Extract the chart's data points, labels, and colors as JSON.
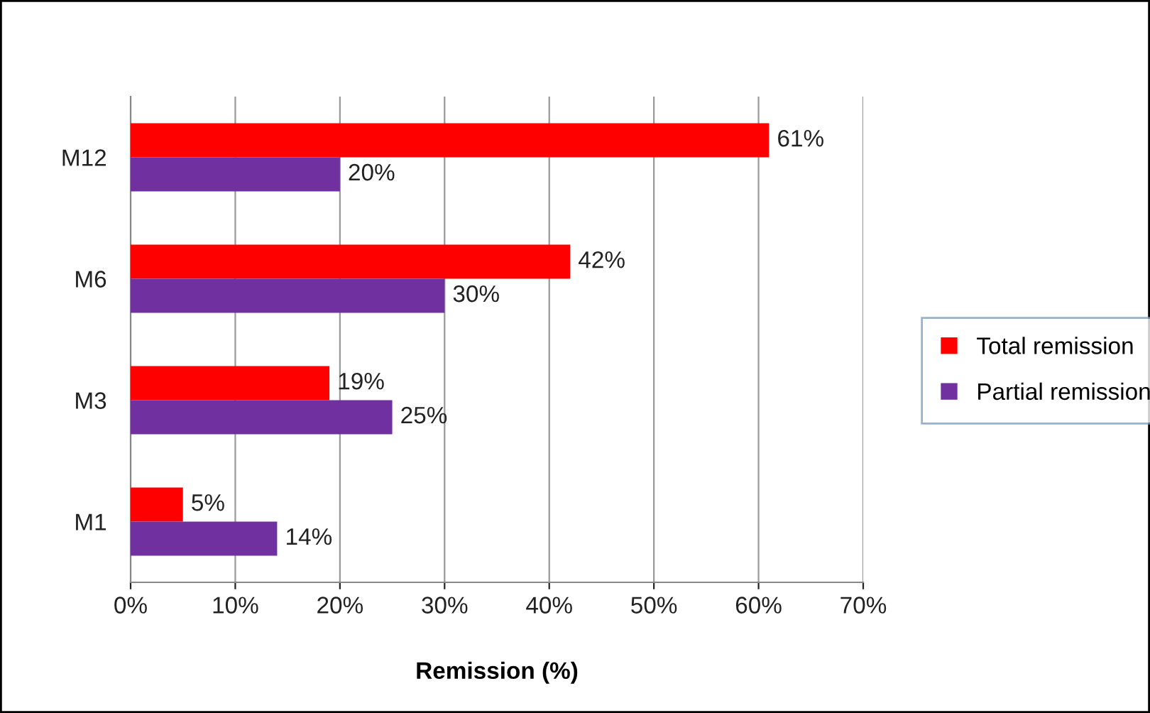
{
  "chart_data": {
    "type": "bar",
    "orientation": "horizontal",
    "xlabel": "Remission (%)",
    "categories": [
      "M12",
      "M6",
      "M3",
      "M1"
    ],
    "series": [
      {
        "name": "Total remission",
        "color": "#ff0000",
        "values": [
          61,
          42,
          19,
          5
        ],
        "value_labels": [
          "61%",
          "42%",
          "19%",
          "5%"
        ]
      },
      {
        "name": "Partial remission",
        "color": "#7030a0",
        "values": [
          20,
          30,
          25,
          14
        ],
        "value_labels": [
          "20%",
          "30%",
          "25%",
          "14%"
        ]
      }
    ],
    "xlim": [
      0,
      70
    ],
    "xticks": [
      {
        "value": 0,
        "label": "0%"
      },
      {
        "value": 10,
        "label": "10%"
      },
      {
        "value": 20,
        "label": "20%"
      },
      {
        "value": 30,
        "label": "30%"
      },
      {
        "value": 40,
        "label": "40%"
      },
      {
        "value": 50,
        "label": "50%"
      },
      {
        "value": 60,
        "label": "60%"
      },
      {
        "value": 70,
        "label": "70%"
      }
    ],
    "grid": "x",
    "legend": "right"
  }
}
